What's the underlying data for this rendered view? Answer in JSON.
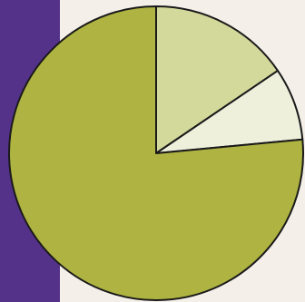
{
  "colors": {
    "background": "#f4efe9",
    "side_band": "#55328a",
    "outline": "#1a1a1a"
  },
  "chart_data": {
    "type": "pie",
    "title": "",
    "legend": "none",
    "start_angle_deg": 0,
    "direction": "clockwise",
    "slices": [
      {
        "value": 15.5,
        "color": "#d3d89b"
      },
      {
        "value": 8.0,
        "color": "#eef0dc"
      },
      {
        "value": 76.5,
        "color": "#aeb341"
      }
    ]
  }
}
